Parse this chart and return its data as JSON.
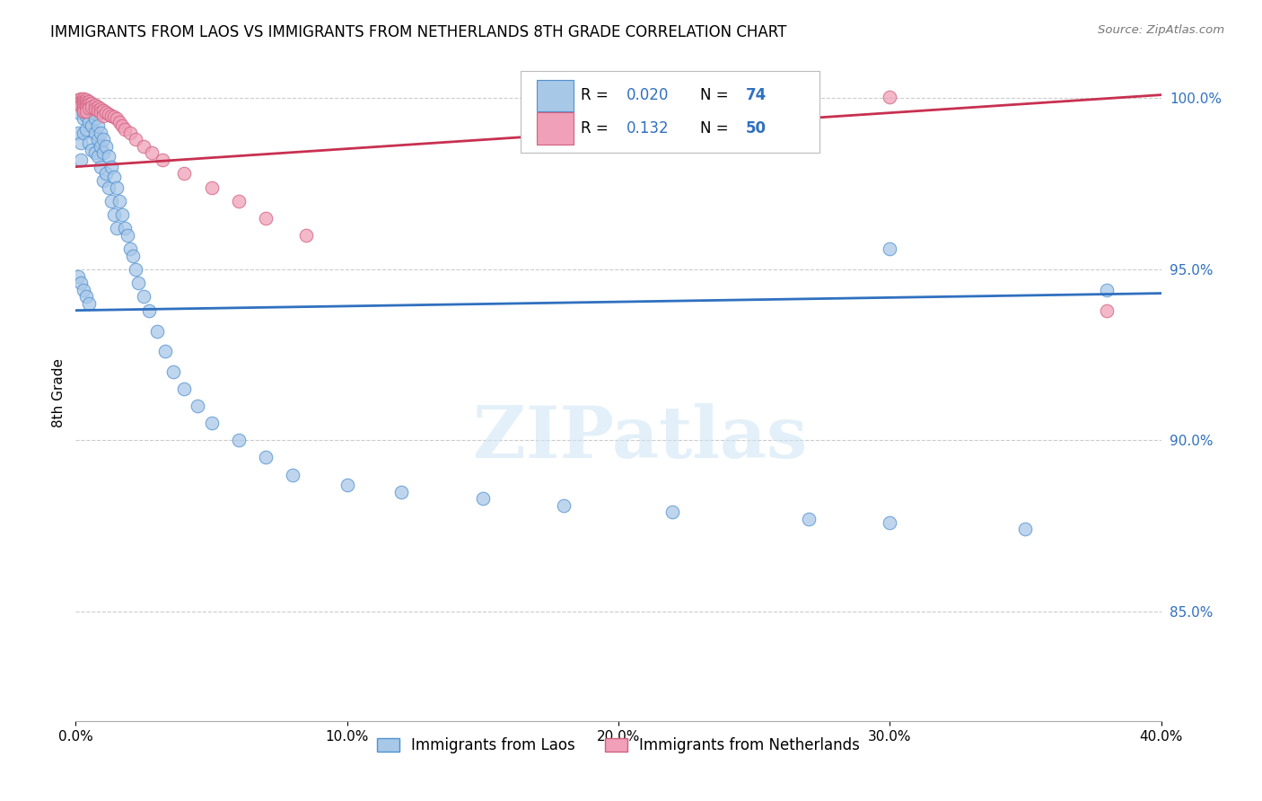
{
  "title": "IMMIGRANTS FROM LAOS VS IMMIGRANTS FROM NETHERLANDS 8TH GRADE CORRELATION CHART",
  "source": "Source: ZipAtlas.com",
  "xlim": [
    0.0,
    0.4
  ],
  "ylim": [
    0.818,
    1.01
  ],
  "xlabel_ticks": [
    0.0,
    0.1,
    0.2,
    0.3,
    0.4
  ],
  "xlabel_labels": [
    "0.0%",
    "10.0%",
    "20.0%",
    "30.0%",
    "40.0%"
  ],
  "ylabel_ticks": [
    0.85,
    0.9,
    0.95,
    1.0
  ],
  "ylabel_labels": [
    "85.0%",
    "90.0%",
    "95.0%",
    "100.0%"
  ],
  "blue_R": 0.02,
  "blue_N": 74,
  "pink_R": 0.132,
  "pink_N": 50,
  "blue_color": "#a8c8e8",
  "pink_color": "#f0a0b8",
  "blue_edge_color": "#5090d0",
  "pink_edge_color": "#d06080",
  "blue_line_color": "#3070c0",
  "pink_line_color": "#c83050",
  "watermark": "ZIPatlas",
  "legend_label_blue": "Immigrants from Laos",
  "legend_label_pink": "Immigrants from Netherlands",
  "blue_x": [
    0.001,
    0.001,
    0.002,
    0.002,
    0.002,
    0.003,
    0.003,
    0.003,
    0.003,
    0.004,
    0.004,
    0.004,
    0.005,
    0.005,
    0.005,
    0.006,
    0.006,
    0.006,
    0.007,
    0.007,
    0.007,
    0.008,
    0.008,
    0.008,
    0.009,
    0.009,
    0.009,
    0.01,
    0.01,
    0.01,
    0.011,
    0.011,
    0.012,
    0.012,
    0.013,
    0.013,
    0.014,
    0.014,
    0.015,
    0.015,
    0.016,
    0.017,
    0.018,
    0.019,
    0.02,
    0.021,
    0.022,
    0.023,
    0.025,
    0.027,
    0.03,
    0.033,
    0.036,
    0.04,
    0.045,
    0.05,
    0.06,
    0.07,
    0.08,
    0.1,
    0.12,
    0.15,
    0.18,
    0.22,
    0.27,
    0.3,
    0.35,
    0.001,
    0.002,
    0.003,
    0.004,
    0.005,
    0.3,
    0.38
  ],
  "blue_y": [
    0.996,
    0.99,
    0.998,
    0.987,
    0.982,
    0.999,
    0.996,
    0.994,
    0.99,
    0.998,
    0.995,
    0.991,
    0.997,
    0.993,
    0.987,
    0.996,
    0.992,
    0.985,
    0.994,
    0.99,
    0.984,
    0.992,
    0.988,
    0.983,
    0.99,
    0.986,
    0.98,
    0.988,
    0.984,
    0.976,
    0.986,
    0.978,
    0.983,
    0.974,
    0.98,
    0.97,
    0.977,
    0.966,
    0.974,
    0.962,
    0.97,
    0.966,
    0.962,
    0.96,
    0.956,
    0.954,
    0.95,
    0.946,
    0.942,
    0.938,
    0.932,
    0.926,
    0.92,
    0.915,
    0.91,
    0.905,
    0.9,
    0.895,
    0.89,
    0.887,
    0.885,
    0.883,
    0.881,
    0.879,
    0.877,
    0.876,
    0.874,
    0.948,
    0.946,
    0.944,
    0.942,
    0.94,
    0.956,
    0.944
  ],
  "pink_x": [
    0.001,
    0.001,
    0.002,
    0.002,
    0.002,
    0.002,
    0.003,
    0.003,
    0.003,
    0.003,
    0.003,
    0.003,
    0.004,
    0.004,
    0.004,
    0.004,
    0.004,
    0.005,
    0.005,
    0.005,
    0.006,
    0.006,
    0.007,
    0.007,
    0.008,
    0.008,
    0.009,
    0.009,
    0.01,
    0.01,
    0.011,
    0.012,
    0.013,
    0.014,
    0.015,
    0.016,
    0.017,
    0.018,
    0.02,
    0.022,
    0.025,
    0.028,
    0.032,
    0.04,
    0.05,
    0.06,
    0.07,
    0.085,
    0.3,
    0.38
  ],
  "pink_y": [
    0.9995,
    0.9985,
    0.9998,
    0.9992,
    0.9985,
    0.9978,
    0.9998,
    0.9992,
    0.9985,
    0.9978,
    0.997,
    0.9962,
    0.9995,
    0.9988,
    0.998,
    0.9972,
    0.9962,
    0.999,
    0.9982,
    0.9972,
    0.9985,
    0.9975,
    0.998,
    0.997,
    0.9975,
    0.9965,
    0.997,
    0.996,
    0.9965,
    0.995,
    0.996,
    0.9955,
    0.995,
    0.9945,
    0.994,
    0.993,
    0.992,
    0.991,
    0.99,
    0.988,
    0.986,
    0.984,
    0.982,
    0.978,
    0.974,
    0.97,
    0.965,
    0.96,
    1.0005,
    0.938
  ],
  "blue_trend_x": [
    0.0,
    0.4
  ],
  "blue_trend_y": [
    0.938,
    0.943
  ],
  "pink_trend_x": [
    0.0,
    0.4
  ],
  "pink_trend_y": [
    0.98,
    1.001
  ]
}
